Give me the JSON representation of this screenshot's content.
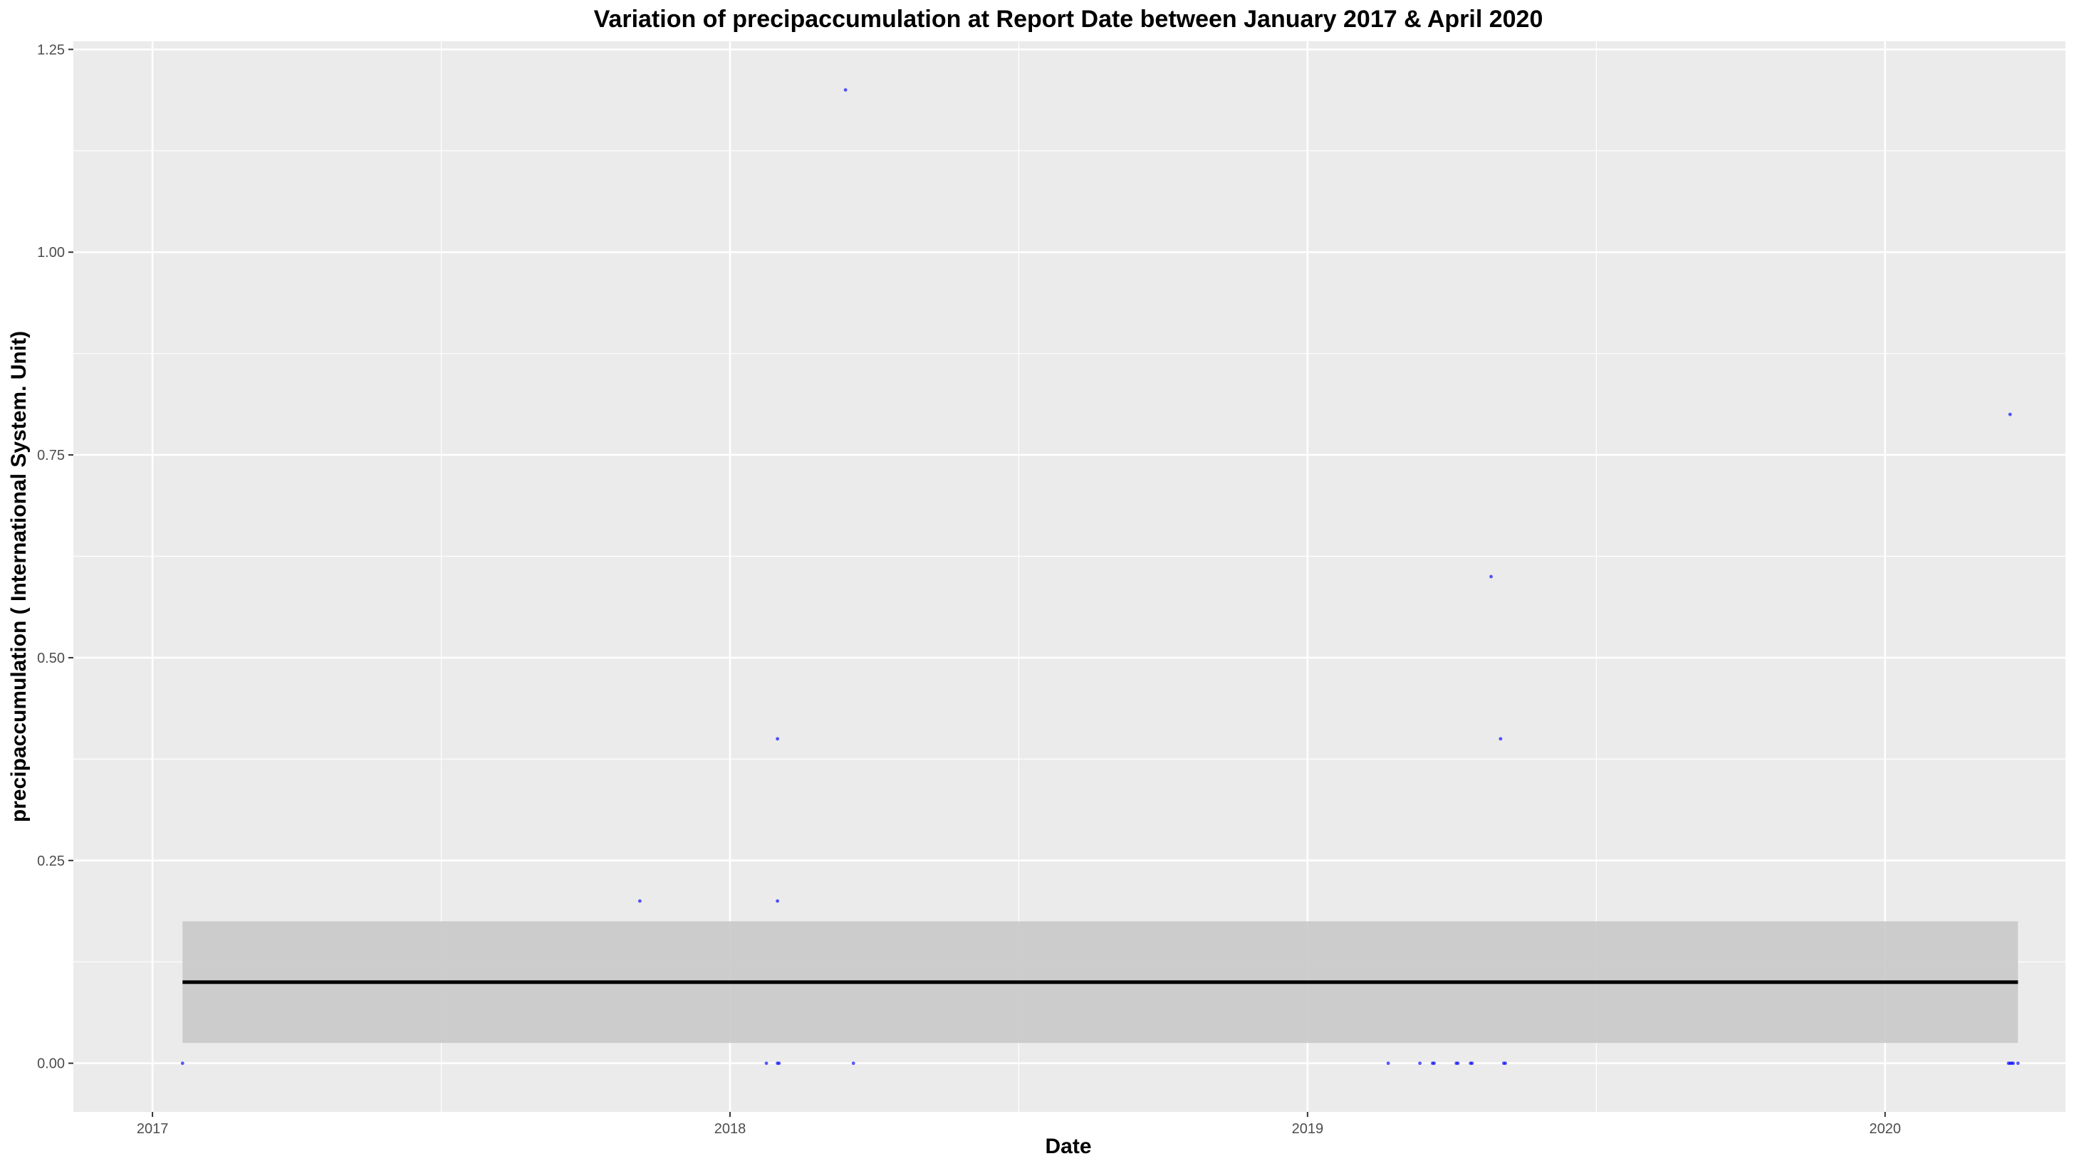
{
  "chart_data": {
    "type": "scatter",
    "title": "Variation of  precipaccumulation  at Report Date between January 2017 & April 2020",
    "xlabel": "Date",
    "ylabel": "precipaccumulation ( International System. Unit)",
    "xlim": [
      "2016-11-12",
      "2020-04-24"
    ],
    "ylim": [
      -0.06,
      1.26
    ],
    "x_ticks": [
      {
        "label": "2017",
        "value": "2017-01-01"
      },
      {
        "label": "2018",
        "value": "2018-01-01"
      },
      {
        "label": "2019",
        "value": "2019-01-01"
      },
      {
        "label": "2020",
        "value": "2020-01-01"
      }
    ],
    "y_ticks": [
      {
        "label": "0.00",
        "value": 0
      },
      {
        "label": "0.25",
        "value": 0.25
      },
      {
        "label": "0.50",
        "value": 0.5
      },
      {
        "label": "0.75",
        "value": 0.75
      },
      {
        "label": "1.00",
        "value": 1.0
      },
      {
        "label": "1.25",
        "value": 1.25
      }
    ],
    "grid": true,
    "points": [
      {
        "x": "2017-01-20",
        "y": 0
      },
      {
        "x": "2017-11-05",
        "y": 0.2
      },
      {
        "x": "2018-01-24",
        "y": 0
      },
      {
        "x": "2018-01-31",
        "y": 0.4
      },
      {
        "x": "2018-01-31",
        "y": 0.2
      },
      {
        "x": "2018-01-31",
        "y": 0
      },
      {
        "x": "2018-02-01",
        "y": 0
      },
      {
        "x": "2018-03-15",
        "y": 1.2
      },
      {
        "x": "2018-03-20",
        "y": 0
      },
      {
        "x": "2019-02-21",
        "y": 0
      },
      {
        "x": "2019-03-13",
        "y": 0
      },
      {
        "x": "2019-03-21",
        "y": 0
      },
      {
        "x": "2019-03-22",
        "y": 0
      },
      {
        "x": "2019-04-05",
        "y": 0
      },
      {
        "x": "2019-04-06",
        "y": 0
      },
      {
        "x": "2019-04-14",
        "y": 0
      },
      {
        "x": "2019-04-15",
        "y": 0
      },
      {
        "x": "2019-04-27",
        "y": 0.6
      },
      {
        "x": "2019-05-03",
        "y": 0.4
      },
      {
        "x": "2019-05-05",
        "y": 0
      },
      {
        "x": "2019-05-06",
        "y": 0
      },
      {
        "x": "2020-03-19",
        "y": 0
      },
      {
        "x": "2020-03-20",
        "y": 0.8
      },
      {
        "x": "2020-03-20",
        "y": 0
      },
      {
        "x": "2020-03-21",
        "y": 0
      },
      {
        "x": "2020-03-22",
        "y": 0
      },
      {
        "x": "2020-03-25",
        "y": 0
      }
    ],
    "trend": {
      "x_start": "2017-01-20",
      "x_end": "2020-03-25",
      "y": 0.1,
      "ci_low": 0.025,
      "ci_high": 0.175
    },
    "colors": {
      "panel": "#EBEBEB",
      "grid": "#FFFFFF",
      "points": "#0000FF",
      "ribbon": "#C9C9C9",
      "trend": "#000000",
      "axis_text": "#4D4D4D"
    }
  }
}
